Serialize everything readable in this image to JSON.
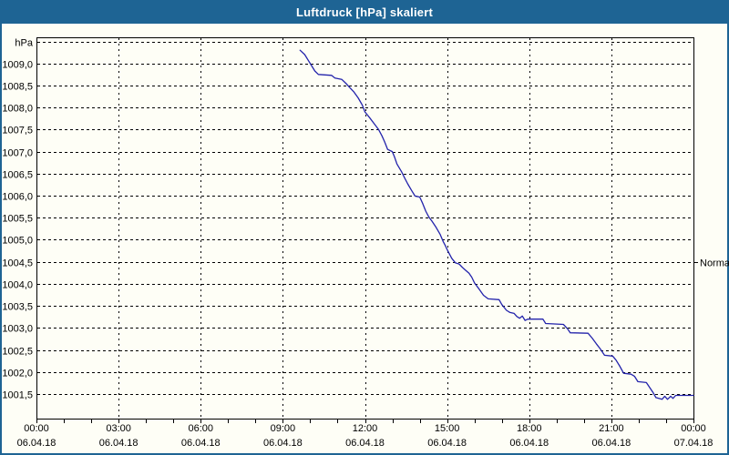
{
  "window": {
    "title": "Luftdruck [hPa] skaliert"
  },
  "colors": {
    "titlebar_bg": "#1e6494",
    "titlebar_text": "#ffffff",
    "window_border": "#1e6494",
    "panel_bg": "#fefef6",
    "grid_color": "#000000",
    "axis_color": "#000000",
    "text_color": "#000000",
    "line_color": "#2323ab"
  },
  "chart_data": {
    "type": "line",
    "title": "Luftdruck [hPa] skaliert",
    "y_axis": {
      "unit_label": "hPa",
      "decimal_separator": ",",
      "gridline_min": 1001.5,
      "gridline_max": 1009.5,
      "gridline_step": 0.5,
      "labeled_max": 1009.0,
      "labeled_min": 1001.5,
      "tick_labels_top_to_bottom": [
        "1009,0",
        "1008,5",
        "1008,0",
        "1007,5",
        "1007,0",
        "1006,5",
        "1006,0",
        "1005,5",
        "1005,0",
        "1004,5",
        "1004,0",
        "1003,5",
        "1003,0",
        "1002,5",
        "1002,0",
        "1001,5"
      ]
    },
    "x_axis": {
      "hours_min": 0,
      "hours_max": 24,
      "major_step_hours": 3,
      "minor_tick_step_hours": 1,
      "major_ticks": [
        {
          "time": "00:00",
          "date": "06.04.18"
        },
        {
          "time": "03:00",
          "date": "06.04.18"
        },
        {
          "time": "06:00",
          "date": "06.04.18"
        },
        {
          "time": "09:00",
          "date": "06.04.18"
        },
        {
          "time": "12:00",
          "date": "06.04.18"
        },
        {
          "time": "15:00",
          "date": "06.04.18"
        },
        {
          "time": "18:00",
          "date": "06.04.18"
        },
        {
          "time": "21:00",
          "date": "06.04.18"
        },
        {
          "time": "00:00",
          "date": "07.04.18"
        }
      ]
    },
    "reference_marker": {
      "label": "Normal",
      "value": 1004.5
    },
    "grid": "dashed",
    "legend": "none",
    "series": [
      {
        "name": "Luftdruck",
        "unit": "hPa",
        "points_hour_value": [
          [
            9.63,
            1009.3
          ],
          [
            9.8,
            1009.2
          ],
          [
            9.95,
            1009.05
          ],
          [
            10.05,
            1008.95
          ],
          [
            10.17,
            1008.83
          ],
          [
            10.3,
            1008.75
          ],
          [
            10.78,
            1008.73
          ],
          [
            10.9,
            1008.67
          ],
          [
            11.15,
            1008.64
          ],
          [
            11.3,
            1008.55
          ],
          [
            11.45,
            1008.45
          ],
          [
            11.6,
            1008.35
          ],
          [
            11.75,
            1008.22
          ],
          [
            11.9,
            1008.06
          ],
          [
            12.0,
            1007.9
          ],
          [
            12.17,
            1007.77
          ],
          [
            12.33,
            1007.64
          ],
          [
            12.5,
            1007.5
          ],
          [
            12.62,
            1007.36
          ],
          [
            12.72,
            1007.22
          ],
          [
            12.83,
            1007.05
          ],
          [
            13.0,
            1007.0
          ],
          [
            13.08,
            1006.88
          ],
          [
            13.17,
            1006.72
          ],
          [
            13.33,
            1006.55
          ],
          [
            13.45,
            1006.4
          ],
          [
            13.56,
            1006.27
          ],
          [
            13.7,
            1006.12
          ],
          [
            13.83,
            1005.99
          ],
          [
            14.0,
            1005.97
          ],
          [
            14.11,
            1005.82
          ],
          [
            14.22,
            1005.65
          ],
          [
            14.33,
            1005.52
          ],
          [
            14.45,
            1005.42
          ],
          [
            14.6,
            1005.28
          ],
          [
            14.75,
            1005.12
          ],
          [
            14.85,
            1004.97
          ],
          [
            14.95,
            1004.85
          ],
          [
            15.0,
            1004.78
          ],
          [
            15.17,
            1004.58
          ],
          [
            15.3,
            1004.48
          ],
          [
            15.44,
            1004.45
          ],
          [
            15.55,
            1004.38
          ],
          [
            15.67,
            1004.31
          ],
          [
            15.8,
            1004.24
          ],
          [
            15.9,
            1004.15
          ],
          [
            16.0,
            1004.02
          ],
          [
            16.17,
            1003.88
          ],
          [
            16.33,
            1003.74
          ],
          [
            16.5,
            1003.66
          ],
          [
            16.9,
            1003.64
          ],
          [
            17.0,
            1003.53
          ],
          [
            17.17,
            1003.4
          ],
          [
            17.3,
            1003.35
          ],
          [
            17.45,
            1003.33
          ],
          [
            17.55,
            1003.26
          ],
          [
            17.65,
            1003.22
          ],
          [
            17.75,
            1003.27
          ],
          [
            17.85,
            1003.17
          ],
          [
            17.95,
            1003.2
          ],
          [
            18.5,
            1003.2
          ],
          [
            18.6,
            1003.1
          ],
          [
            19.25,
            1003.08
          ],
          [
            19.4,
            1002.98
          ],
          [
            19.5,
            1002.89
          ],
          [
            20.15,
            1002.88
          ],
          [
            20.3,
            1002.77
          ],
          [
            20.45,
            1002.64
          ],
          [
            20.6,
            1002.52
          ],
          [
            20.75,
            1002.38
          ],
          [
            21.05,
            1002.36
          ],
          [
            21.17,
            1002.27
          ],
          [
            21.3,
            1002.14
          ],
          [
            21.45,
            1001.97
          ],
          [
            21.72,
            1001.95
          ],
          [
            21.85,
            1001.9
          ],
          [
            21.97,
            1001.78
          ],
          [
            22.28,
            1001.76
          ],
          [
            22.4,
            1001.65
          ],
          [
            22.52,
            1001.54
          ],
          [
            22.63,
            1001.42
          ],
          [
            22.85,
            1001.38
          ],
          [
            22.95,
            1001.45
          ],
          [
            23.05,
            1001.38
          ],
          [
            23.17,
            1001.45
          ],
          [
            23.25,
            1001.4
          ],
          [
            23.35,
            1001.47
          ],
          [
            24.0,
            1001.47
          ]
        ]
      }
    ]
  }
}
